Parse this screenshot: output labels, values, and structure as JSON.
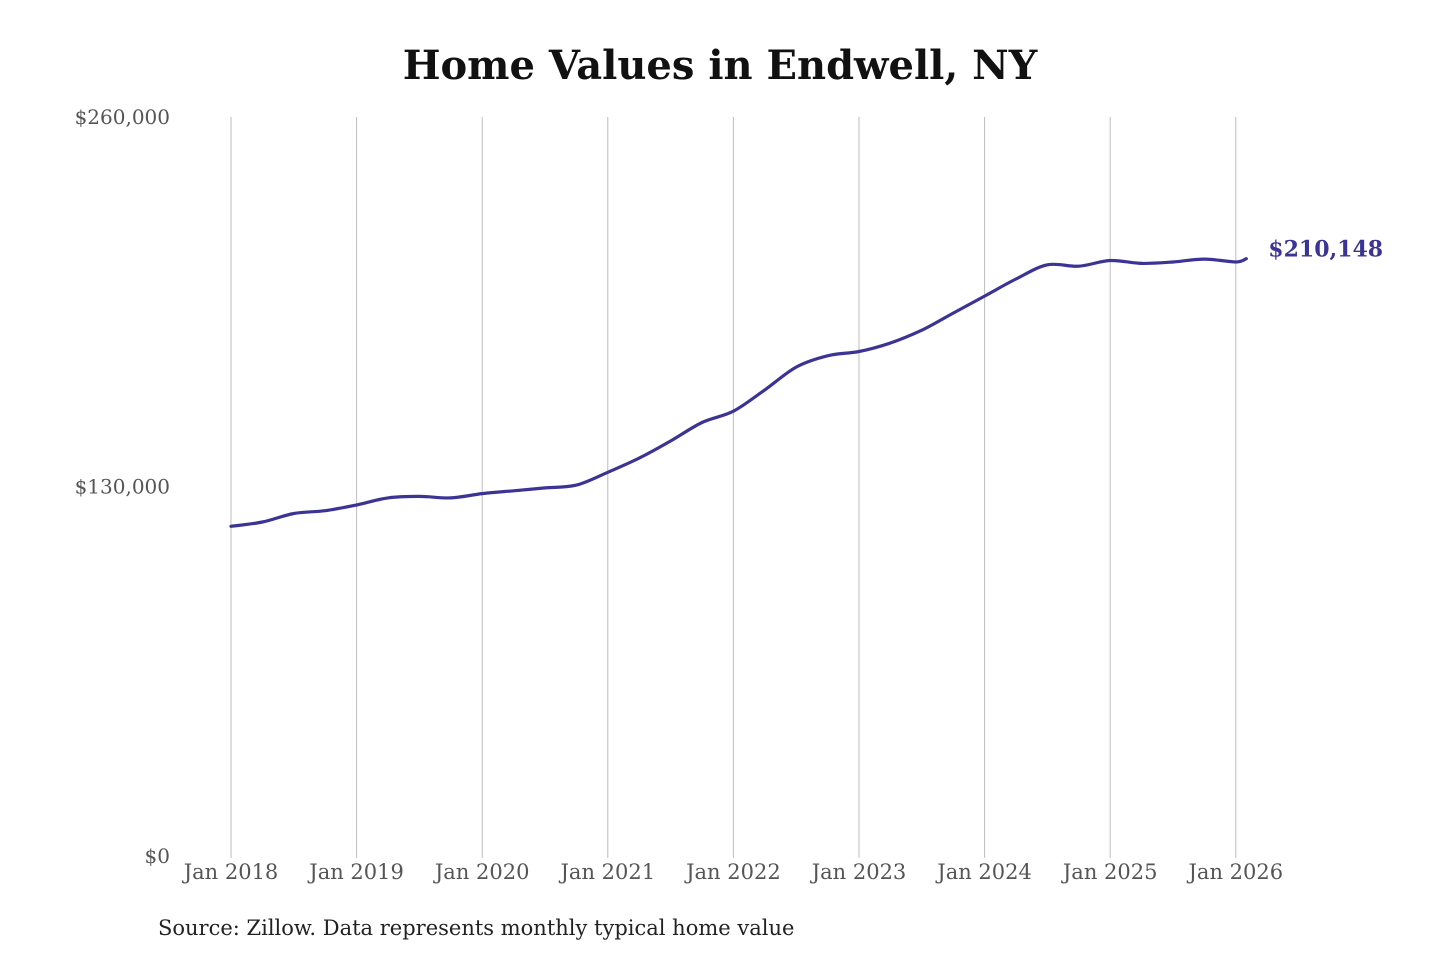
{
  "chart_data": {
    "type": "line",
    "title": "Home Values in Endwell, NY",
    "source": "Source: Zillow. Data represents monthly typical home value",
    "ylim": [
      0,
      260000
    ],
    "y_ticks": [
      0,
      130000,
      260000
    ],
    "y_tick_labels": [
      "$0",
      "$130,000",
      "$260,000"
    ],
    "x_ticks": [
      2018,
      2019,
      2020,
      2021,
      2022,
      2023,
      2024,
      2025,
      2026
    ],
    "x_tick_labels": [
      "Jan 2018",
      "Jan 2019",
      "Jan 2020",
      "Jan 2021",
      "Jan 2022",
      "Jan 2023",
      "Jan 2024",
      "Jan 2025",
      "Jan 2026"
    ],
    "xlim": [
      2018,
      2026.083
    ],
    "grid": "vertical",
    "line_color": "#3b3494",
    "end_label": "$210,148",
    "series": [
      {
        "x": [
          "2018-01",
          "2018-04",
          "2018-07",
          "2018-10",
          "2019-01",
          "2019-04",
          "2019-07",
          "2019-10",
          "2020-01",
          "2020-04",
          "2020-07",
          "2020-10",
          "2021-01",
          "2021-04",
          "2021-07",
          "2021-10",
          "2022-01",
          "2022-04",
          "2022-07",
          "2022-10",
          "2023-01",
          "2023-04",
          "2023-07",
          "2023-10",
          "2024-01",
          "2024-04",
          "2024-07",
          "2024-10",
          "2025-01",
          "2025-04",
          "2025-07",
          "2025-10",
          "2026-01",
          "2026-02"
        ],
        "values": [
          116000,
          117500,
          120500,
          121500,
          123500,
          126000,
          126500,
          126000,
          127500,
          128500,
          129500,
          130500,
          135000,
          140000,
          146000,
          152500,
          156500,
          164000,
          172000,
          176000,
          177500,
          180500,
          185000,
          191000,
          197000,
          203000,
          208000,
          207500,
          209500,
          208500,
          209000,
          210000,
          209000,
          210148
        ]
      }
    ]
  }
}
